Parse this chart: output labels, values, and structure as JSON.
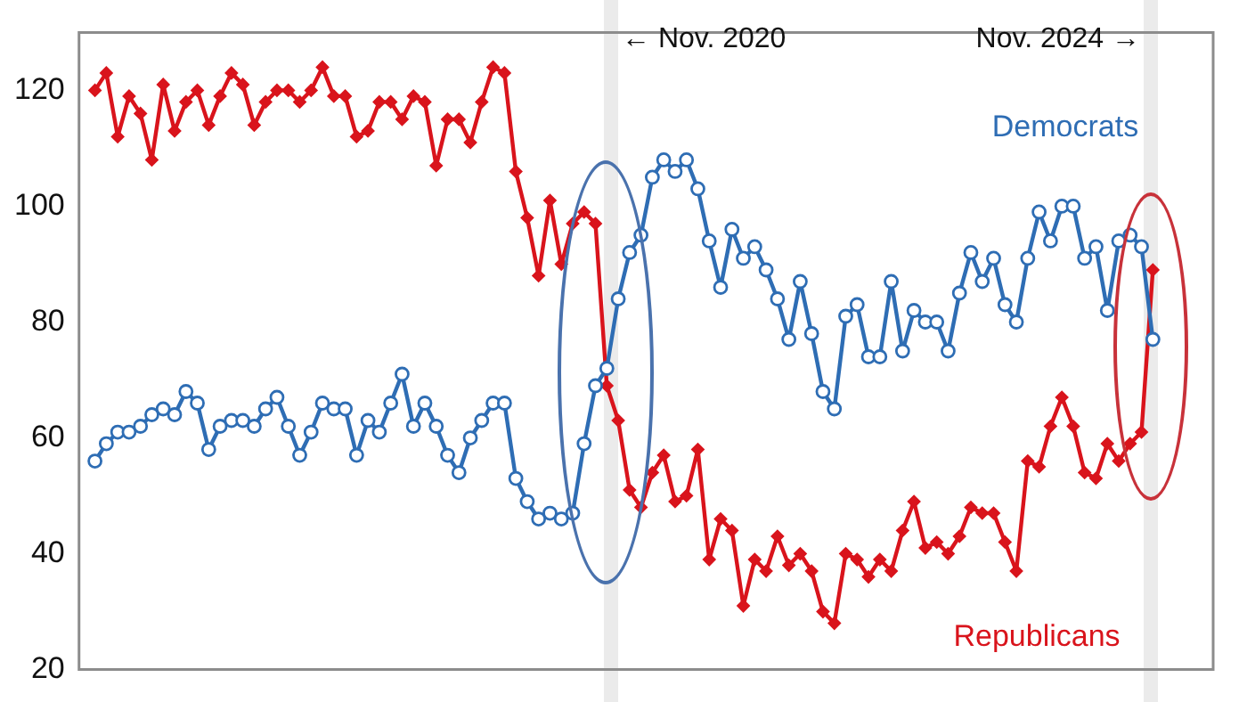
{
  "chart_data": {
    "type": "line",
    "categories": [
      null,
      null,
      null,
      null,
      null,
      null,
      null,
      null,
      null,
      null,
      null,
      null,
      null,
      null,
      null,
      null,
      null,
      null,
      null,
      null,
      null,
      null,
      null,
      null,
      null,
      null,
      null,
      null,
      null,
      null,
      null,
      null,
      null,
      null,
      null,
      null,
      null,
      null,
      null,
      null,
      null,
      null,
      null,
      null,
      null,
      null,
      null,
      null,
      null,
      null,
      null,
      null,
      null,
      null,
      null,
      null,
      null,
      null,
      null,
      null,
      null,
      null,
      null,
      null,
      null,
      null,
      null,
      null,
      null,
      null,
      null,
      null,
      null,
      null,
      null,
      null,
      null,
      null,
      null,
      null,
      null,
      null,
      null,
      null,
      null,
      null,
      null,
      null,
      null,
      null,
      null,
      null,
      null,
      null
    ],
    "series": [
      {
        "name": "Democrats",
        "color": "#2e6db4",
        "marker": "circle",
        "values": [
          56,
          59,
          61,
          61,
          62,
          64,
          65,
          64,
          68,
          66,
          58,
          62,
          63,
          63,
          62,
          65,
          67,
          62,
          57,
          61,
          66,
          65,
          65,
          57,
          63,
          61,
          66,
          71,
          62,
          66,
          62,
          57,
          54,
          60,
          63,
          66,
          66,
          53,
          49,
          46,
          47,
          46,
          47,
          59,
          69,
          72,
          84,
          92,
          95,
          105,
          108,
          106,
          108,
          103,
          94,
          86,
          96,
          91,
          93,
          89,
          84,
          77,
          87,
          78,
          68,
          65,
          81,
          83,
          74,
          74,
          87,
          75,
          82,
          80,
          80,
          75,
          85,
          92,
          87,
          91,
          83,
          80,
          91,
          99,
          94,
          100,
          100,
          91,
          93,
          82,
          94,
          95,
          93,
          77
        ]
      },
      {
        "name": "Republicans",
        "color": "#d9141c",
        "marker": "diamond",
        "values": [
          120,
          123,
          112,
          119,
          116,
          108,
          121,
          113,
          118,
          120,
          114,
          119,
          123,
          121,
          114,
          118,
          120,
          120,
          118,
          120,
          124,
          119,
          119,
          112,
          113,
          118,
          118,
          115,
          119,
          118,
          107,
          115,
          115,
          111,
          118,
          124,
          123,
          106,
          98,
          88,
          101,
          90,
          97,
          99,
          97,
          69,
          63,
          51,
          48,
          54,
          57,
          49,
          50,
          58,
          39,
          46,
          44,
          31,
          39,
          37,
          43,
          38,
          40,
          37,
          30,
          28,
          40,
          39,
          36,
          39,
          37,
          44,
          49,
          41,
          42,
          40,
          43,
          48,
          47,
          47,
          42,
          37,
          56,
          55,
          62,
          67,
          62,
          54,
          53,
          59,
          56,
          59,
          61,
          89
        ]
      }
    ],
    "ylim": [
      20,
      130
    ],
    "yticks": [
      20,
      40,
      60,
      80,
      100,
      120
    ],
    "tick_labels": "y",
    "grid": false,
    "legend": false,
    "line_style": "solid",
    "annotations": [
      "← Nov. 2020",
      "Nov. 2024 →"
    ]
  }
}
